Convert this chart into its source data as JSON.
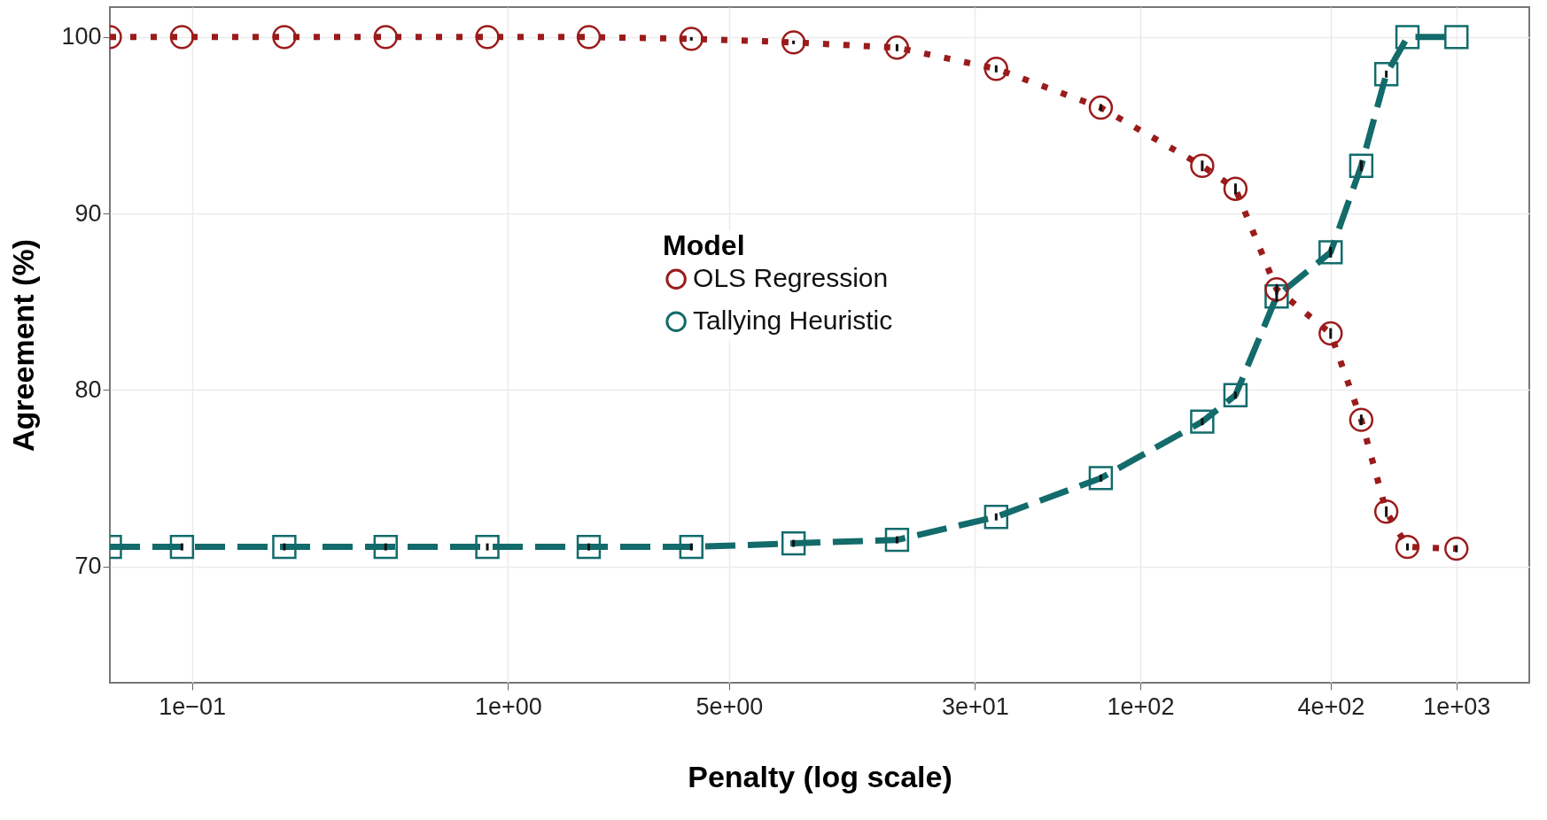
{
  "chart_data": {
    "type": "line",
    "xlabel": "Penalty (log scale)",
    "ylabel": "Agreement (%)",
    "legend_title": "Model",
    "legend": "center",
    "grid": true,
    "log": "x",
    "x": [
      0.055,
      0.093,
      0.196,
      0.41,
      0.86,
      1.8,
      3.8,
      8,
      17,
      35,
      75,
      157,
      200,
      270,
      400,
      500,
      600,
      700,
      1000
    ],
    "xlim": [
      0.055,
      1700
    ],
    "xticks": [
      {
        "value": 0.1,
        "label": "1e−01"
      },
      {
        "value": 1,
        "label": "1e+00"
      },
      {
        "value": 5,
        "label": "5e+00"
      },
      {
        "value": 30,
        "label": "3e+01"
      },
      {
        "value": 100,
        "label": "1e+02"
      },
      {
        "value": 400,
        "label": "4e+02"
      },
      {
        "value": 1000,
        "label": "1e+03"
      }
    ],
    "ylim": [
      63.4,
      101.7
    ],
    "yticks": [
      70,
      80,
      90,
      100
    ],
    "series": [
      {
        "name": "OLS Regression",
        "color": "#9b1b1b",
        "marker": "circle",
        "line_style": "dotted",
        "values": [
          100,
          100,
          100,
          100,
          100,
          100,
          99.9,
          99.7,
          99.4,
          98.2,
          96.0,
          92.7,
          91.4,
          85.7,
          83.2,
          78.3,
          73.1,
          71.1,
          71.0
        ],
        "errors": [
          null,
          null,
          null,
          null,
          null,
          null,
          0.1,
          0.1,
          0.2,
          0.2,
          0.2,
          0.3,
          0.3,
          0.3,
          0.3,
          0.3,
          0.3,
          0.2,
          0.2
        ]
      },
      {
        "name": "Tallying Heuristic",
        "color": "#136b6b",
        "marker": "square",
        "line_style": "dashed",
        "values": [
          71.1,
          71.1,
          71.1,
          71.1,
          71.1,
          71.1,
          71.1,
          71.3,
          71.5,
          72.8,
          75.0,
          78.2,
          79.7,
          85.3,
          87.8,
          92.7,
          97.9,
          100,
          100
        ],
        "errors": [
          null,
          0.2,
          0.2,
          0.2,
          0.2,
          0.2,
          0.2,
          0.2,
          0.2,
          0.2,
          0.2,
          0.2,
          0.2,
          0.3,
          0.3,
          0.3,
          0.2,
          null,
          null
        ]
      }
    ]
  }
}
